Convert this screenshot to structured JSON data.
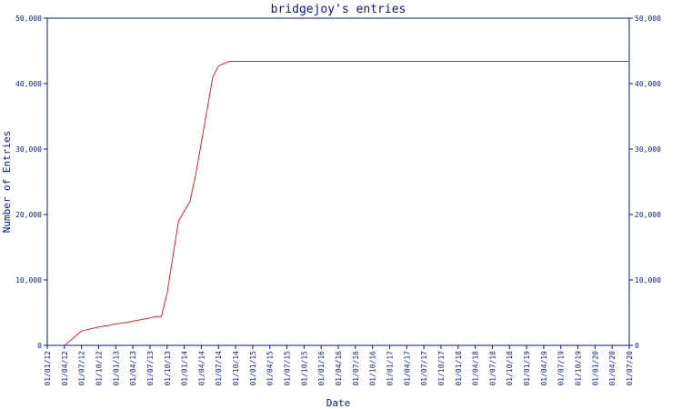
{
  "chart_data": {
    "type": "line",
    "title": "bridgejoy's entries",
    "xlabel": "Date",
    "ylabel": "Number of Entries",
    "ylim": [
      0,
      50000
    ],
    "y_ticks": [
      0,
      10000,
      20000,
      30000,
      40000,
      50000
    ],
    "y_tick_labels": [
      "0",
      "10,000",
      "20,000",
      "30,000",
      "40,000",
      "50,000"
    ],
    "x_tick_labels": [
      "01/01/12",
      "01/04/12",
      "01/07/12",
      "01/10/12",
      "01/01/13",
      "01/04/13",
      "01/07/13",
      "01/10/13",
      "01/01/14",
      "01/04/14",
      "01/07/14",
      "01/10/14",
      "01/01/15",
      "01/04/15",
      "01/07/15",
      "01/10/15",
      "01/01/16",
      "01/04/16",
      "01/07/16",
      "01/10/16",
      "01/01/17",
      "01/04/17",
      "01/07/17",
      "01/10/17",
      "01/01/18",
      "01/04/18",
      "01/07/18",
      "01/10/18",
      "01/01/19",
      "01/04/19",
      "01/07/19",
      "01/10/19",
      "01/01/20",
      "01/04/20",
      "01/07/20"
    ],
    "grid": false,
    "colors": {
      "axis": "#0a1a8c",
      "line": "#e8202a"
    },
    "series": [
      {
        "x": [
          "01/04/12",
          "01/05/12",
          "01/06/12",
          "01/07/12",
          "01/08/12",
          "01/10/12",
          "01/12/12",
          "01/01/13",
          "01/03/13",
          "01/04/13",
          "01/07/13",
          "01/08/13",
          "01/09/13",
          "01/10/13",
          "01/11/13",
          "01/12/13",
          "01/01/14",
          "01/02/14",
          "01/03/14",
          "01/04/14",
          "01/05/14",
          "01/06/14",
          "01/07/14",
          "01/08/14",
          "01/09/14",
          "01/10/14",
          "01/07/20"
        ],
        "values": [
          0,
          700,
          1500,
          2200,
          2400,
          2800,
          3100,
          3300,
          3500,
          3700,
          4200,
          4400,
          4400,
          8000,
          13500,
          19000,
          20500,
          22000,
          26000,
          31000,
          36000,
          41000,
          42700,
          43100,
          43400,
          43400,
          43400
        ]
      }
    ]
  }
}
